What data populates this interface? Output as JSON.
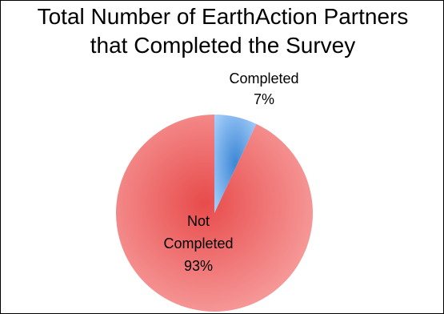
{
  "chart_data": {
    "type": "pie",
    "title_lines": [
      "Total Number of EarthAction Partners",
      "that Completed the Survey"
    ],
    "slices": [
      {
        "label_lines": [
          "Completed"
        ],
        "value": 7,
        "value_label": "7%",
        "color": "#7fb6ef"
      },
      {
        "label_lines": [
          "Not",
          "Completed"
        ],
        "value": 93,
        "value_label": "93%",
        "color": "#f07c7c"
      }
    ],
    "start_angle_deg": 0,
    "direction": "clockwise",
    "legend": "none"
  }
}
